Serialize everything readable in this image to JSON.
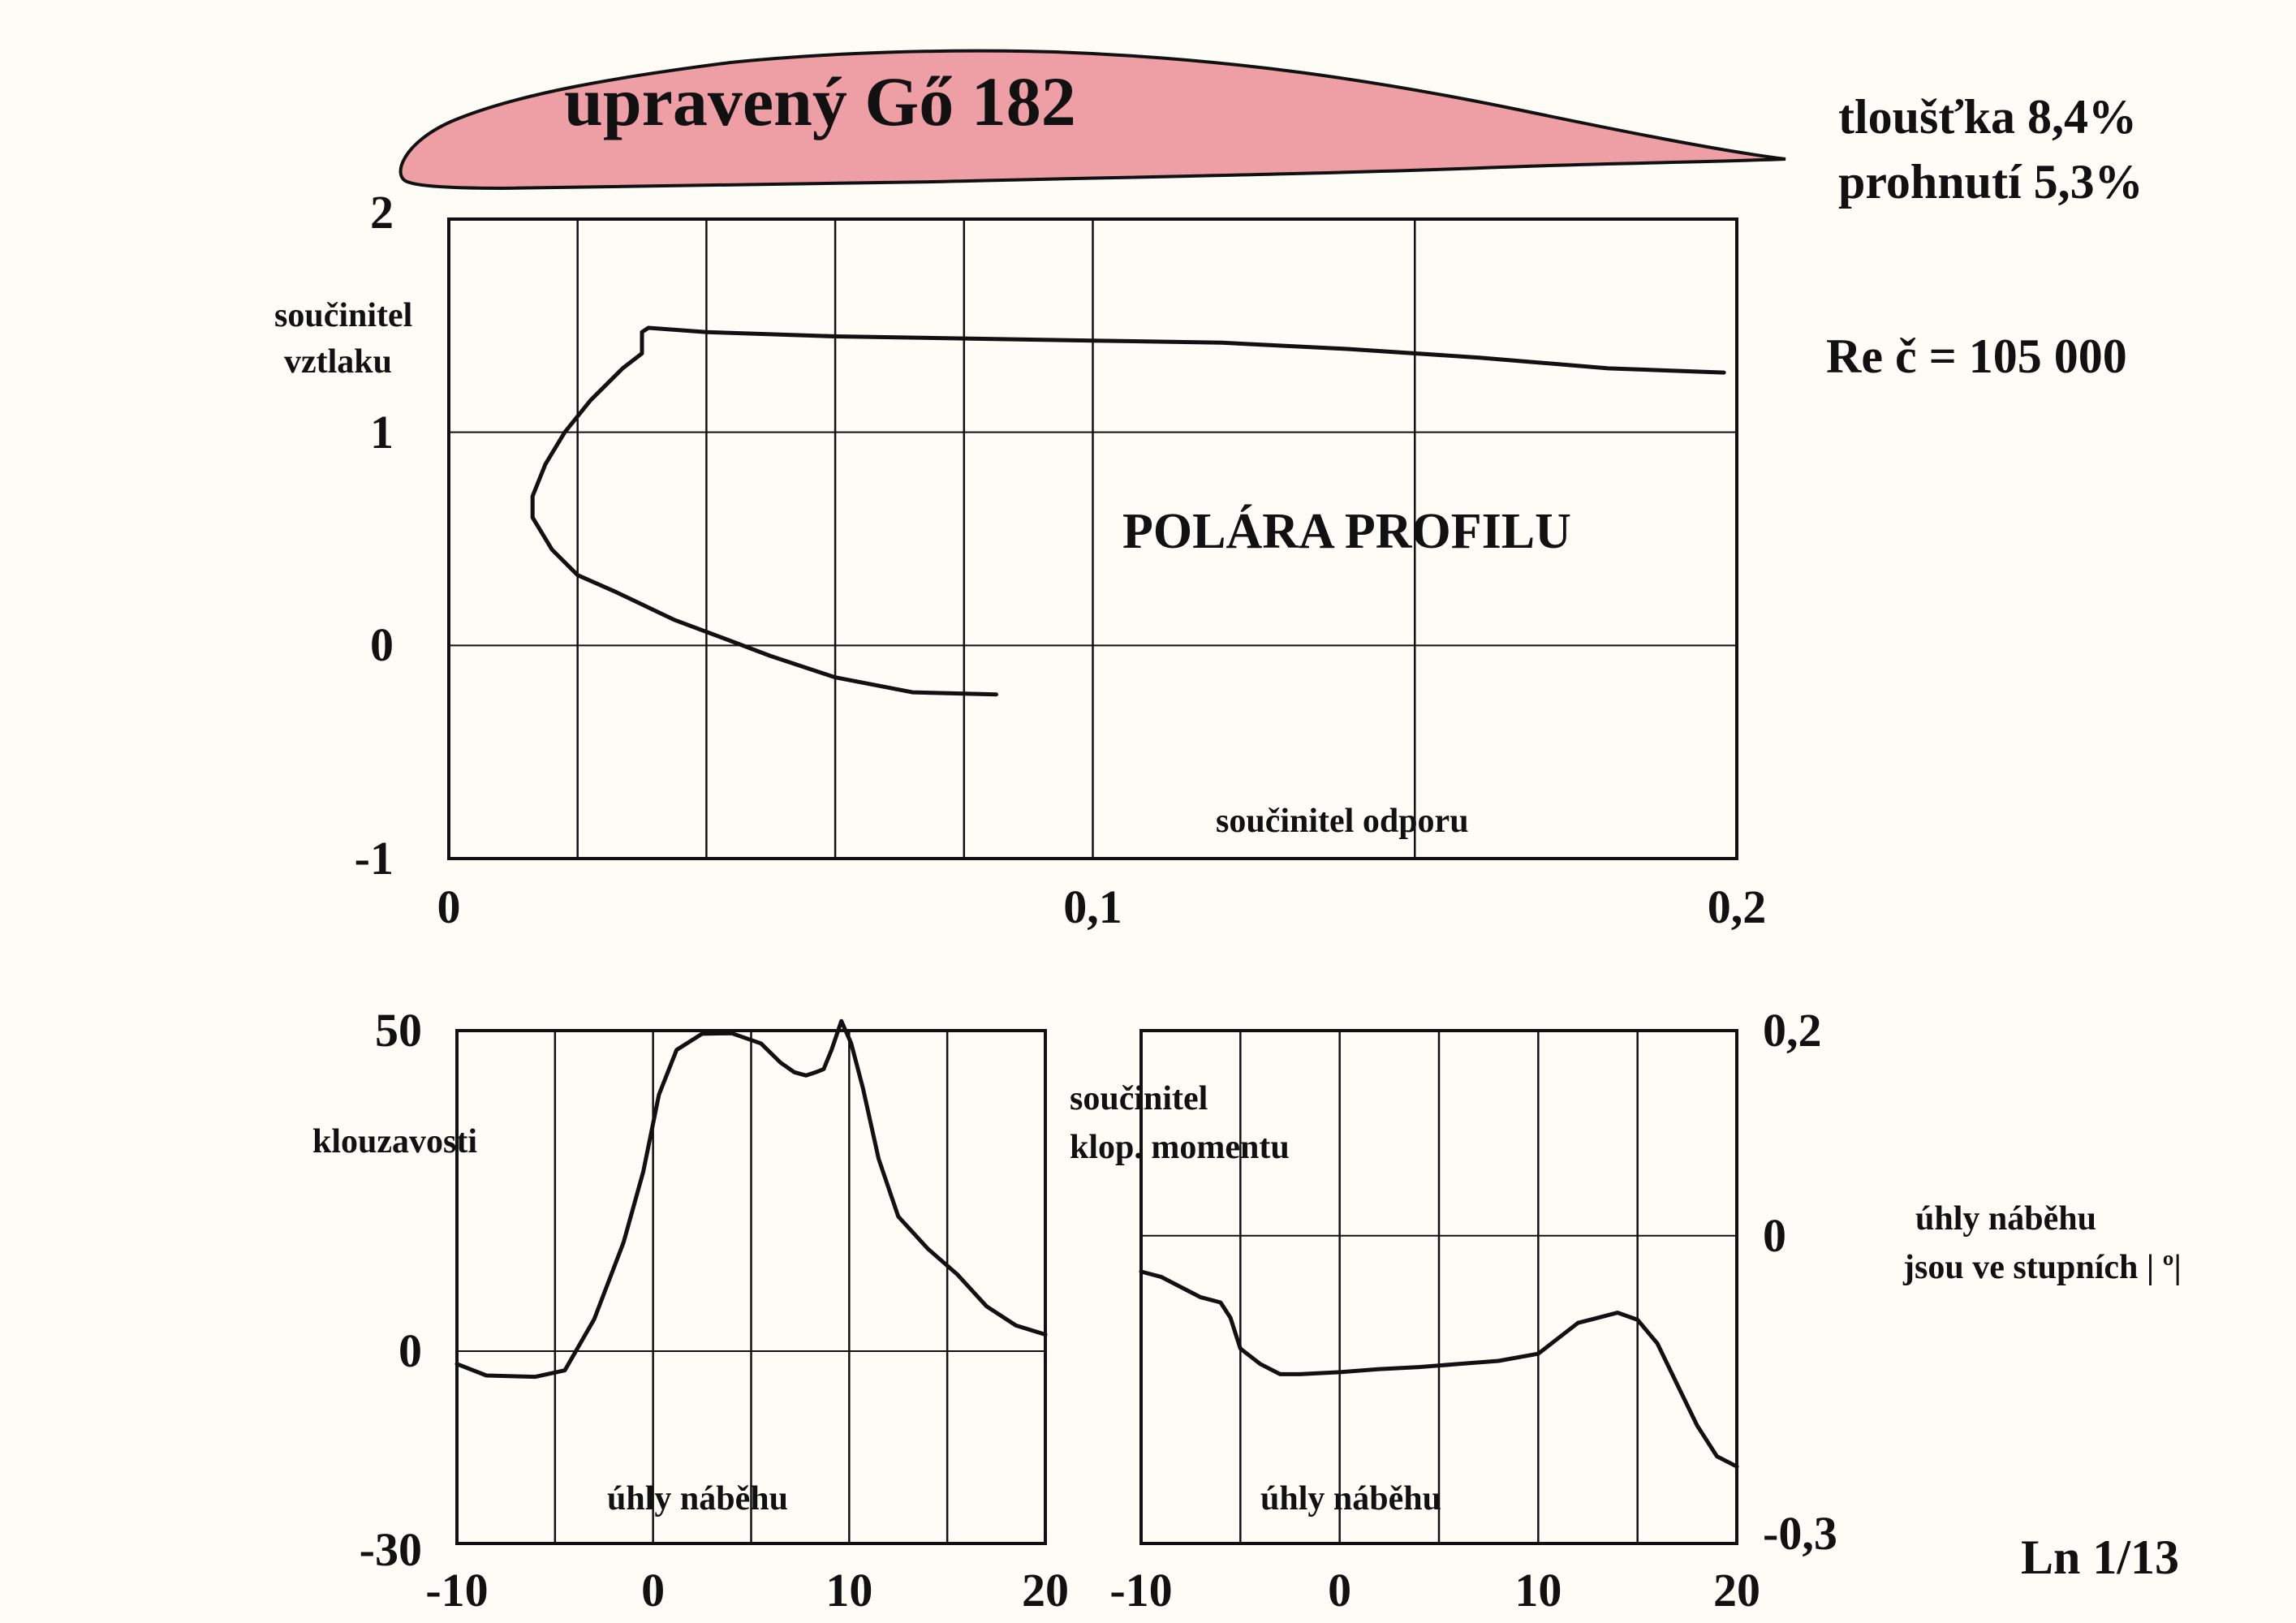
{
  "title": "upravený Gő 182",
  "specs": {
    "thickness": "tloušťka    8,4%",
    "camber": "prohnutí   5,3%"
  },
  "reynolds": "Re č = 105 000",
  "page_code": "Ln 1/13",
  "note": {
    "line1": "úhly náběhu",
    "line2": "jsou ve stupních | º|"
  },
  "colors": {
    "airfoil_fill": "#ee9fa6",
    "ink": "#111111",
    "paper": "#fdfcf7"
  },
  "chart_data": [
    {
      "type": "line",
      "name": "polar",
      "title": "POLÁRA  PROFILU",
      "xlabel": "součinitel odporu",
      "ylabel": [
        "součinitel",
        "vztlaku"
      ],
      "xlim": [
        0,
        0.2
      ],
      "ylim": [
        -1,
        2
      ],
      "x_ticks": [
        "0",
        "0,1",
        "0,2"
      ],
      "y_ticks": [
        "2",
        "1",
        "0",
        "-1"
      ],
      "x": [
        0.085,
        0.072,
        0.06,
        0.05,
        0.043,
        0.035,
        0.026,
        0.02,
        0.016,
        0.013,
        0.013,
        0.015,
        0.018,
        0.022,
        0.027,
        0.03,
        0.03,
        0.031,
        0.04,
        0.06,
        0.08,
        0.1,
        0.12,
        0.14,
        0.16,
        0.18,
        0.198
      ],
      "y": [
        -0.23,
        -0.22,
        -0.15,
        -0.05,
        0.03,
        0.12,
        0.25,
        0.33,
        0.45,
        0.6,
        0.7,
        0.85,
        1.0,
        1.15,
        1.3,
        1.37,
        1.47,
        1.49,
        1.47,
        1.45,
        1.44,
        1.43,
        1.42,
        1.39,
        1.35,
        1.3,
        1.28
      ]
    },
    {
      "type": "line",
      "name": "glide_ratio",
      "xlabel": "úhly  náběhu",
      "ylabel": "klouzavosti",
      "xlim": [
        -10,
        20
      ],
      "ylim": [
        -30,
        50
      ],
      "x_ticks": [
        "-10",
        "0",
        "10",
        "20"
      ],
      "y_ticks": [
        "50",
        "0",
        "-30"
      ],
      "x": [
        -8,
        -6,
        -5,
        -4,
        -3,
        -2,
        -1,
        0,
        0.5,
        1,
        2,
        3,
        4,
        5,
        6,
        7,
        8,
        8.5,
        9,
        9.5,
        10,
        11,
        12,
        13,
        14,
        15,
        16,
        17,
        18,
        19,
        20
      ],
      "y": [
        -4,
        -4,
        -3,
        0,
        7,
        15,
        25,
        38,
        44,
        48,
        50,
        50,
        50,
        48,
        45,
        43,
        42,
        44,
        48,
        52,
        44,
        30,
        20,
        16,
        13,
        10,
        7,
        5,
        4,
        3,
        3
      ],
      "x_curve": [
        -10,
        -8.5,
        -6,
        -4.5,
        -3,
        -1.5,
        -0.5,
        0.3,
        1.2,
        2.5,
        4,
        5.5,
        6.5,
        7.2,
        7.8,
        8.3,
        8.7,
        9.1,
        9.6,
        10.1,
        10.7,
        11.5,
        12.5,
        14,
        15.5,
        17,
        18.5,
        20
      ],
      "y_curve": [
        -2,
        -3.8,
        -4,
        -3,
        5,
        17,
        28,
        40,
        47,
        49.5,
        49.6,
        48,
        45,
        43.5,
        43,
        43.5,
        44,
        47,
        51.5,
        48,
        41,
        30,
        21,
        16,
        12,
        7,
        4,
        2.6
      ]
    },
    {
      "type": "line",
      "name": "pitching_moment",
      "xlabel": "úhly  náběhu",
      "ylabel": [
        "součinitel",
        "klop. momentu"
      ],
      "xlim": [
        -10,
        20
      ],
      "ylim": [
        -0.3,
        0.2
      ],
      "x_ticks": [
        "-10",
        "0",
        "10",
        "20"
      ],
      "y_ticks": [
        "0,2",
        "0",
        "-0,3"
      ],
      "x": [
        -10,
        -9,
        -8,
        -7,
        -6,
        -5.5,
        -5,
        -4,
        -3,
        -2,
        0,
        2,
        4,
        6,
        8,
        10,
        11,
        12,
        13,
        14,
        15,
        16,
        17,
        18,
        19,
        20
      ],
      "y": [
        -0.035,
        -0.04,
        -0.05,
        -0.06,
        -0.065,
        -0.08,
        -0.11,
        -0.125,
        -0.135,
        -0.135,
        -0.133,
        -0.13,
        -0.128,
        -0.125,
        -0.122,
        -0.115,
        -0.1,
        -0.085,
        -0.08,
        -0.075,
        -0.082,
        -0.105,
        -0.145,
        -0.185,
        -0.215,
        -0.225
      ]
    }
  ]
}
